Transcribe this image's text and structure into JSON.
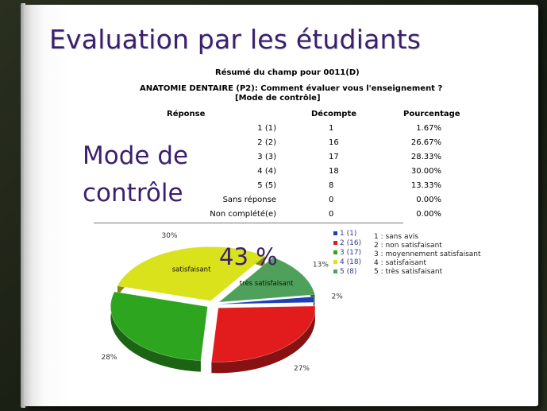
{
  "slide": {
    "title": "Evaluation par les étudiants",
    "mode_line1": "Mode de",
    "mode_line2": "contrôle",
    "big_percent": "43 %"
  },
  "summary": {
    "heading": "Résumé du champ pour 0011(D)",
    "question_line1": "ANATOMIE DENTAIRE (P2): Comment évaluer vous l'enseignement ?",
    "question_line2": "[Mode de contrôle]",
    "columns": [
      "Réponse",
      "Décompte",
      "Pourcentage"
    ],
    "rows": [
      {
        "label": "1 (1)",
        "count": "1",
        "pct": "1.67%"
      },
      {
        "label": "2 (2)",
        "count": "16",
        "pct": "26.67%"
      },
      {
        "label": "3 (3)",
        "count": "17",
        "pct": "28.33%"
      },
      {
        "label": "4 (4)",
        "count": "18",
        "pct": "30.00%"
      },
      {
        "label": "5 (5)",
        "count": "8",
        "pct": "13.33%"
      },
      {
        "label": "Sans réponse",
        "count": "0",
        "pct": "0.00%"
      },
      {
        "label": "Non complété(e)",
        "count": "0",
        "pct": "0.00%"
      }
    ]
  },
  "chart_data": {
    "type": "pie",
    "slices": [
      {
        "name": "1 (1)",
        "value": 1.67,
        "label": "2%",
        "color": "#1f3fb5"
      },
      {
        "name": "2 (16)",
        "value": 26.67,
        "label": "27%",
        "color": "#e21c1c"
      },
      {
        "name": "3 (17)",
        "value": 28.33,
        "label": "28%",
        "color": "#2ea51f"
      },
      {
        "name": "4 (18)",
        "value": 30.0,
        "label": "30%",
        "color": "#d9e21a",
        "inner_label": "satisfaisant"
      },
      {
        "name": "5 (8)",
        "value": 13.33,
        "label": "13%",
        "color": "#4fa05a",
        "inner_label": "très satisfaisant"
      }
    ],
    "legend": [
      "1 (1)",
      "2 (16)",
      "3 (17)",
      "4 (18)",
      "5 (8)"
    ],
    "legend_placement": "right"
  },
  "notes": [
    "1 : sans avis",
    "2 : non satisfaisant",
    "3 : moyennement satisfaisant",
    "4 : satisfaisant",
    "5 : très satisfaisant"
  ]
}
